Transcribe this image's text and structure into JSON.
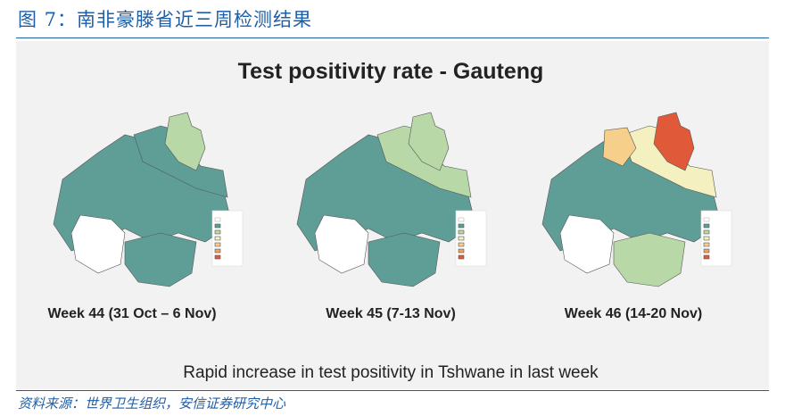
{
  "header": {
    "title": "图 7：南非豪滕省近三周检测结果"
  },
  "slide": {
    "title": "Test positivity rate - Gauteng",
    "maps": [
      {
        "label": "Week 44 (31 Oct – 6 Nov)"
      },
      {
        "label": "Week 45 (7-13 Nov)"
      },
      {
        "label": "Week 46 (14-20 Nov)"
      }
    ],
    "caption": "Rapid increase in test positivity in Tshwane in last week"
  },
  "source": "资料来源：世界卫生组织，安信证券研究中心"
}
